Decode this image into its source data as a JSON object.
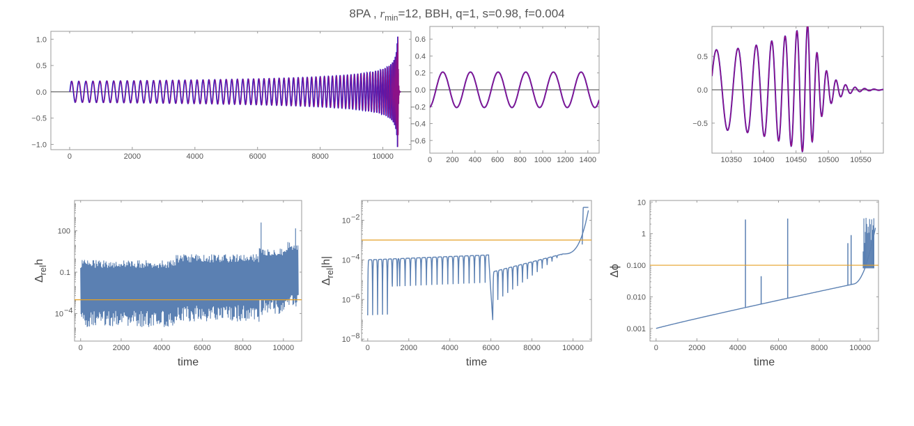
{
  "title": {
    "prefix": "8PA ,",
    "r": "r",
    "r_sub": "min",
    "suffix": "=12, BBH, q=1, s=0.98, f=0.004"
  },
  "colors": {
    "frame": "#9a9a9a",
    "waveform_model": "#1f1fd0",
    "waveform_reference": "#a0107a",
    "error_curve": "#5b80b2",
    "threshold": "#e5a024",
    "zero_line": "#666666"
  },
  "chart_data": [
    {
      "id": "full-waveform",
      "type": "line",
      "description_series": "two overlapping waveforms (blue and purple)",
      "xlim": [
        -600,
        10900
      ],
      "ylim": [
        -1.1,
        1.15
      ],
      "xticks": [
        0,
        2000,
        4000,
        6000,
        8000,
        10000
      ],
      "yticks": [
        -1.0,
        -0.5,
        0.0,
        0.5,
        1.0
      ],
      "xlabel": "",
      "ylabel": "",
      "waveform": {
        "t0": 0,
        "t_merge": 10480,
        "t_end": 10560,
        "amp0": 0.2,
        "amp_peak": 1.05,
        "period0": 230
      }
    },
    {
      "id": "early-zoom",
      "type": "line",
      "xlim": [
        0,
        1500
      ],
      "ylim": [
        -0.75,
        0.75
      ],
      "xticks": [
        0,
        200,
        400,
        600,
        800,
        1000,
        1200,
        1400
      ],
      "yticks": [
        -0.6,
        -0.4,
        -0.2,
        0.0,
        0.2,
        0.4,
        0.6
      ],
      "xlabel": "",
      "ylabel": "",
      "waveform": {
        "amp": 0.21,
        "period": 245,
        "phase_deg": -100
      }
    },
    {
      "id": "merger-zoom",
      "type": "line",
      "xlim": [
        10320,
        10585
      ],
      "ylim": [
        -0.95,
        0.95
      ],
      "xticks": [
        10350,
        10400,
        10450,
        10500,
        10550
      ],
      "yticks": [
        -0.5,
        0.0,
        0.5
      ],
      "xlabel": "",
      "ylabel": "",
      "waveform": {
        "t_peak": 10470,
        "amp_peak": 0.98
      }
    },
    {
      "id": "rel-error-h",
      "type": "line",
      "scale_y": "log",
      "xlim": [
        -300,
        10900
      ],
      "ylim_log10": [
        -6.0,
        4.2
      ],
      "xticks": [
        0,
        2000,
        4000,
        6000,
        8000,
        10000
      ],
      "yticks": [
        {
          "value": 100,
          "label": "100"
        },
        {
          "value": 0.1,
          "label": "0.1"
        },
        {
          "value": 0.0001,
          "label": "10",
          "sup": "−4"
        }
      ],
      "xlabel": "time",
      "ylabel": {
        "main": "Δ",
        "sub": "rel",
        "tail": "h"
      },
      "threshold": 0.001
    },
    {
      "id": "rel-error-abs-h",
      "type": "line",
      "scale_y": "log",
      "xlim": [
        -300,
        10900
      ],
      "ylim_log10": [
        -8.1,
        -1.0
      ],
      "xticks": [
        0,
        2000,
        4000,
        6000,
        8000,
        10000
      ],
      "yticks": [
        {
          "value": 0.01,
          "label": "10",
          "sup": "−2"
        },
        {
          "value": 0.0001,
          "label": "10",
          "sup": "−4"
        },
        {
          "value": 1e-06,
          "label": "10",
          "sup": "−6"
        },
        {
          "value": 1e-08,
          "label": "10",
          "sup": "−8"
        }
      ],
      "xlabel": "time",
      "ylabel": {
        "main": "Δ",
        "sub": "rel",
        "tail": "|h|"
      },
      "threshold": 0.001
    },
    {
      "id": "phase-error",
      "type": "line",
      "scale_y": "log",
      "xlim": [
        -300,
        10900
      ],
      "ylim_log10": [
        -3.4,
        1.05
      ],
      "xticks": [
        0,
        2000,
        4000,
        6000,
        8000,
        10000
      ],
      "yticks": [
        {
          "value": 10,
          "label": "10"
        },
        {
          "value": 1,
          "label": "1"
        },
        {
          "value": 0.1,
          "label": "0.100"
        },
        {
          "value": 0.01,
          "label": "0.010"
        },
        {
          "value": 0.001,
          "label": "0.001"
        }
      ],
      "xlabel": "time",
      "ylabel": {
        "main": "Δ",
        "sub": "",
        "tail": "ϕ"
      },
      "threshold": 0.1,
      "spikes": [
        {
          "x": 4380,
          "y": 2.8
        },
        {
          "x": 5150,
          "y": 0.045
        },
        {
          "x": 6450,
          "y": 3.0
        },
        {
          "x": 9400,
          "y": 0.5
        },
        {
          "x": 9560,
          "y": 0.9
        }
      ]
    }
  ]
}
